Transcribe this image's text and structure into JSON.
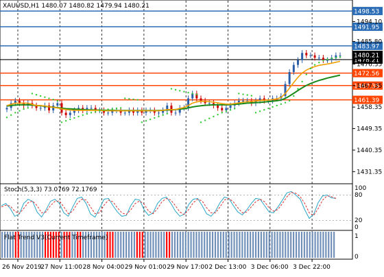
{
  "header": {
    "symbol_line": "XAUUSD,H1  1480.07 1480.82 1479.94 1480.21"
  },
  "stoch": {
    "label": "Stoch(5,3,3) 73.0769 72.1769",
    "main": [
      55,
      60,
      48,
      30,
      35,
      60,
      70,
      65,
      40,
      28,
      45,
      65,
      70,
      60,
      38,
      30,
      52,
      72,
      75,
      60,
      35,
      28,
      48,
      70,
      72,
      55,
      40,
      30,
      32,
      55,
      70,
      68,
      45,
      32,
      38,
      60,
      72,
      75,
      60,
      42,
      30,
      35,
      58,
      70,
      72,
      55,
      36,
      30,
      42,
      62,
      75,
      72,
      55,
      40,
      33,
      45,
      60,
      72,
      70,
      55,
      40,
      38,
      52,
      68,
      85,
      88,
      80,
      70,
      45,
      25,
      35,
      62,
      78,
      80,
      73,
      72
    ],
    "signal": [
      52,
      56,
      54,
      42,
      36,
      48,
      62,
      66,
      55,
      38,
      40,
      55,
      65,
      66,
      52,
      36,
      42,
      60,
      70,
      68,
      52,
      36,
      38,
      56,
      68,
      64,
      50,
      38,
      34,
      45,
      60,
      66,
      58,
      42,
      36,
      48,
      64,
      72,
      68,
      55,
      40,
      34,
      46,
      62,
      70,
      66,
      50,
      38,
      38,
      52,
      68,
      72,
      64,
      50,
      38,
      40,
      52,
      64,
      70,
      64,
      50,
      42,
      46,
      60,
      76,
      86,
      84,
      76,
      60,
      38,
      32,
      48,
      68,
      78,
      76,
      72
    ],
    "level_high": "80",
    "level_low": "20",
    "scale_100": "100",
    "scale_80": "80",
    "scale_20": "20",
    "scale_0": "0"
  },
  "trend": {
    "label": "Flat Trend V3(Current Timeframe)",
    "scale_1": "1",
    "scale_0": "0",
    "colors": [
      "#6f8fb8",
      "#6f8fb8",
      "#6f8fb8",
      "#6f8fb8",
      "#6f8fb8",
      "#ff0000",
      "#ff0000",
      "#6f8fb8",
      "#6f8fb8",
      "#6f8fb8",
      "#6f8fb8",
      "#6f8fb8",
      "#6f8fb8",
      "#6f8fb8",
      "#6f8fb8",
      "#6f8fb8",
      "#ff0000",
      "#ff0000",
      "#ff0000",
      "#ff0000",
      "#ff0000",
      "#ff0000",
      "#6f8fb8",
      "#ff0000",
      "#ff0000",
      "#ff0000",
      "#6f8fb8",
      "#6f8fb8",
      "#ff0000",
      "#ff0000",
      "#6f8fb8",
      "#6f8fb8",
      "#6f8fb8",
      "#6f8fb8",
      "#6f8fb8",
      "#6f8fb8",
      "#6f8fb8",
      "#6f8fb8",
      "#6f8fb8",
      "#ff0000",
      "#ff0000",
      "#ff0000",
      "#6f8fb8",
      "#6f8fb8",
      "#6f8fb8",
      "#6f8fb8",
      "#6f8fb8",
      "#6f8fb8",
      "#6f8fb8",
      "#6f8fb8",
      "#ff0000",
      "#ff0000",
      "#ff0000",
      "#6f8fb8",
      "#6f8fb8",
      "#6f8fb8",
      "#6f8fb8",
      "#6f8fb8",
      "#6f8fb8",
      "#6f8fb8",
      "#6f8fb8",
      "#ff0000",
      "#ff0000",
      "#6f8fb8",
      "#6f8fb8",
      "#6f8fb8",
      "#6f8fb8",
      "#6f8fb8",
      "#6f8fb8",
      "#6f8fb8",
      "#6f8fb8",
      "#6f8fb8",
      "#6f8fb8",
      "#6f8fb8",
      "#6f8fb8",
      "#6f8fb8",
      "#6f8fb8",
      "#6f8fb8",
      "#6f8fb8",
      "#6f8fb8",
      "#6f8fb8",
      "#6f8fb8",
      "#6f8fb8",
      "#6f8fb8",
      "#6f8fb8",
      "#6f8fb8",
      "#6f8fb8",
      "#6f8fb8",
      "#6f8fb8",
      "#6f8fb8",
      "#6f8fb8",
      "#6f8fb8",
      "#6f8fb8",
      "#6f8fb8",
      "#6f8fb8",
      "#6f8fb8",
      "#6f8fb8",
      "#6f8fb8",
      "#6f8fb8",
      "#6f8fb8",
      "#6f8fb8",
      "#6f8fb8",
      "#6f8fb8",
      "#6f8fb8",
      "#6f8fb8",
      "#6f8fb8",
      "#6f8fb8",
      "#6f8fb8",
      "#6f8fb8",
      "#6f8fb8",
      "#6f8fb8",
      "#6f8fb8",
      "#6f8fb8",
      "#6f8fb8",
      "#6f8fb8",
      "#6f8fb8",
      "#6f8fb8",
      "#6f8fb8",
      "#6f8fb8",
      "#6f8fb8",
      "#6f8fb8",
      "#6f8fb8",
      "#6f8fb8",
      "#6f8fb8"
    ]
  },
  "chart_data": {
    "type": "line",
    "title": "XAUUSD,H1",
    "price_axis": {
      "min": 1428,
      "max": 1502,
      "ticks": [
        "1494.10",
        "1485.80",
        "1476.35",
        "1467.35",
        "1458.35",
        "1449.35",
        "1440.35",
        "1431.35"
      ],
      "tick_values": [
        1494.1,
        1485.8,
        1476.35,
        1467.35,
        1458.35,
        1449.35,
        1440.35,
        1431.35
      ]
    },
    "horizontal_levels": [
      {
        "value": 1498.53,
        "label": "1498.53",
        "color": "#2a6cb5"
      },
      {
        "value": 1491.95,
        "label": "1491.95",
        "color": "#2a6cb5"
      },
      {
        "value": 1483.97,
        "label": "1483.97",
        "color": "#2a6cb5"
      },
      {
        "value": 1478.21,
        "label": "1478.21",
        "color": "#000000"
      },
      {
        "value": 1472.56,
        "label": "1472.56",
        "color": "#ff4500"
      },
      {
        "value": 1467.35,
        "label": "1467.35",
        "color": "#ff4500"
      },
      {
        "value": 1461.39,
        "label": "1461.39",
        "color": "#ff4500"
      }
    ],
    "current_price": {
      "value": 1480.21,
      "label": "1480.21"
    },
    "time_labels": [
      "26 Nov 2019",
      "27 Nov 11:00",
      "28 Nov 04:00",
      "29 Nov 01:00",
      "29 Nov 17:00",
      "2 Dec 13:00",
      "3 Dec 06:00",
      "3 Dec 22:00"
    ],
    "close": [
      1458,
      1460,
      1461,
      1460,
      1459,
      1460,
      1459,
      1458,
      1458,
      1459,
      1457,
      1459,
      1460,
      1456,
      1455,
      1456,
      1457,
      1458,
      1457,
      1458,
      1458,
      1457,
      1457,
      1456,
      1456,
      1457,
      1457,
      1456,
      1456,
      1457,
      1456,
      1457,
      1456,
      1457,
      1457,
      1456,
      1456,
      1457,
      1459,
      1456,
      1456,
      1458,
      1458,
      1462,
      1464,
      1462,
      1461,
      1460,
      1460,
      1459,
      1458,
      1457,
      1458,
      1459,
      1460,
      1461,
      1461,
      1461,
      1460,
      1461,
      1462,
      1461,
      1461,
      1462,
      1462,
      1463,
      1468,
      1473,
      1476,
      1478,
      1481,
      1480,
      1480,
      1479,
      1479,
      1478,
      1478,
      1479,
      1480,
      1480
    ],
    "sma_fast": [
      1459,
      1459.5,
      1460,
      1460,
      1460,
      1460,
      1459.5,
      1459,
      1459,
      1458.8,
      1458.5,
      1458.3,
      1458,
      1457.6,
      1457.3,
      1457.1,
      1457,
      1457,
      1457,
      1457,
      1457,
      1457,
      1457,
      1456.8,
      1456.8,
      1456.8,
      1456.8,
      1456.8,
      1456.8,
      1456.8,
      1456.8,
      1456.8,
      1456.8,
      1456.8,
      1456.8,
      1456.8,
      1456.8,
      1457,
      1457.3,
      1457.3,
      1457.3,
      1457.8,
      1458.2,
      1459,
      1460,
      1460.5,
      1460.8,
      1460.7,
      1460.6,
      1460.4,
      1460.1,
      1459.8,
      1459.6,
      1459.6,
      1459.8,
      1460.1,
      1460.4,
      1460.6,
      1460.7,
      1460.9,
      1461.1,
      1461.2,
      1461.3,
      1461.5,
      1461.8,
      1462.4,
      1464,
      1466.3,
      1468.6,
      1470.8,
      1472.6,
      1473.8,
      1474.7,
      1475.3,
      1475.8,
      1476.1,
      1476.4,
      1476.7,
      1477.1,
      1477.5
    ],
    "sma_slow": [
      1458.8,
      1459,
      1459.2,
      1459.3,
      1459.3,
      1459.3,
      1459.2,
      1459,
      1458.9,
      1458.7,
      1458.5,
      1458.3,
      1458.1,
      1457.9,
      1457.7,
      1457.6,
      1457.5,
      1457.4,
      1457.3,
      1457.2,
      1457.2,
      1457.1,
      1457.1,
      1457,
      1457,
      1457,
      1456.9,
      1456.9,
      1456.9,
      1456.9,
      1456.9,
      1456.9,
      1456.9,
      1456.9,
      1456.9,
      1456.9,
      1456.9,
      1457,
      1457.1,
      1457.2,
      1457.3,
      1457.5,
      1457.7,
      1458,
      1458.4,
      1458.7,
      1458.9,
      1459.1,
      1459.2,
      1459.3,
      1459.3,
      1459.3,
      1459.3,
      1459.4,
      1459.5,
      1459.6,
      1459.8,
      1460,
      1460.1,
      1460.2,
      1460.3,
      1460.5,
      1460.6,
      1460.8,
      1461,
      1461.3,
      1462,
      1463,
      1464.1,
      1465.3,
      1466.4,
      1467.4,
      1468.2,
      1468.9,
      1469.5,
      1470,
      1470.5,
      1470.9,
      1471.3,
      1471.7
    ],
    "psar": [
      1454,
      1455,
      1456,
      1456.8,
      1457.5,
      1458,
      1464,
      1463.5,
      1463,
      1462.5,
      1462,
      1461.5,
      1461,
      1452,
      1452.6,
      1453.2,
      1453.8,
      1454.4,
      1455,
      1455.5,
      1456,
      1456.4,
      1456.8,
      1457.1,
      1457.4,
      1457.6,
      1457.8,
      1458,
      1462,
      1461.8,
      1461.6,
      1461.4,
      1452,
      1452.6,
      1453.2,
      1453.8,
      1454.4,
      1455,
      1455.6,
      1466,
      1465.6,
      1465.2,
      1464.8,
      1464.4,
      1464,
      1463.6,
      1452,
      1452.8,
      1453.6,
      1454.4,
      1455.2,
      1456,
      1456.6,
      1457.2,
      1457.7,
      1464,
      1463.7,
      1463.4,
      1463.1,
      1456,
      1456.6,
      1457.2,
      1457.8,
      1458.4,
      1459,
      1459.6,
      1460.2,
      1461,
      1463,
      1466,
      1469,
      1472,
      1474.5,
      1476,
      1477,
      1477.8,
      1478.3,
      1478.7,
      1479,
      1479.3
    ]
  }
}
